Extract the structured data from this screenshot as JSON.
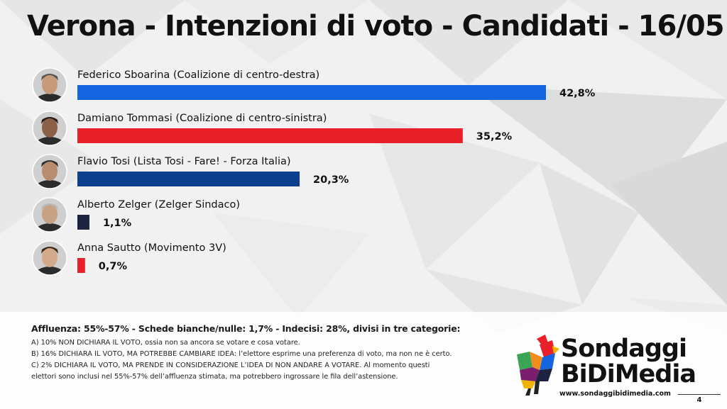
{
  "title": "Verona - Intenzioni di voto  - Candidati - 16/05",
  "chart_data": {
    "type": "bar",
    "orientation": "horizontal",
    "categories": [
      "Federico Sboarina (Coalizione di centro-destra)",
      "Damiano Tommasi (Coalizione di centro-sinistra)",
      "Flavio Tosi (Lista Tosi - Fare! - Forza Italia)",
      "Alberto Zelger (Zelger Sindaco)",
      "Anna Sautto (Movimento 3V)"
    ],
    "values": [
      42.8,
      35.2,
      20.3,
      1.1,
      0.7
    ],
    "value_labels": [
      "42,8%",
      "35,2%",
      "20,3%",
      "1,1%",
      "0,7%"
    ],
    "colors": [
      "#1565e0",
      "#e8202a",
      "#0d3f8c",
      "#1b2340",
      "#e8202a"
    ],
    "grid": false,
    "legend": "none",
    "xlabel": "",
    "ylabel": ""
  },
  "notes": {
    "headline": "Affluenza: 55%-57% - Schede bianche/nulle: 1,7% - Indecisi: 28%, divisi in tre categorie:",
    "lines": [
      "A) 10% NON DICHIARA IL VOTO, ossia non sa ancora se votare e cosa votare.",
      "B) 16% DICHIARA IL VOTO, MA POTREBBE CAMBIARE IDEA: l’elettore esprime una preferenza di voto, ma non ne è certo.",
      "C) 2% DICHIARA IL VOTO, MA PRENDE IN CONSIDERAZIONE L’IDEA DI NON ANDARE A VOTARE. Al momento questi",
      "elettori sono inclusi nel 55%-57% dell’affluenza stimata, ma potrebbero ingrossare le fila dell’astensione."
    ]
  },
  "logo": {
    "name_line1": "Sondaggi",
    "name_line2": "BiDiMedia",
    "url": "www.sondaggibidimedia.com",
    "icon": "rooster-icon"
  },
  "page_number": "4"
}
